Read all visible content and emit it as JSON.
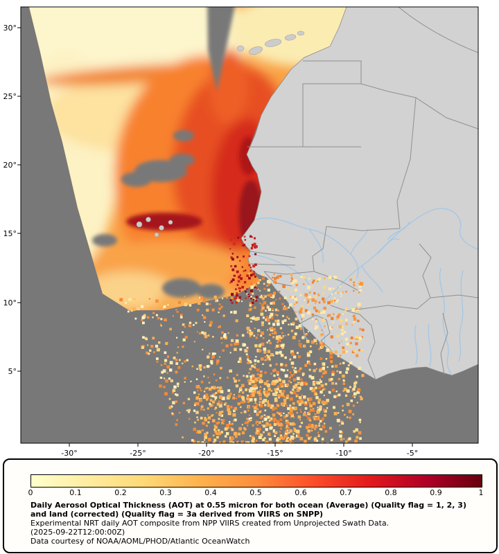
{
  "map": {
    "y_tick_labels": [
      "30°",
      "25°",
      "20°",
      "15°",
      "10°",
      "5°"
    ],
    "x_tick_labels": [
      "-30°",
      "-25°",
      "-20°",
      "-15°",
      "-10°",
      "-5°"
    ]
  },
  "colorbar": {
    "tick_labels": [
      "0",
      "0.1",
      "0.2",
      "0.3",
      "0.4",
      "0.5",
      "0.6",
      "0.7",
      "0.8",
      "0.9",
      "1"
    ],
    "gradient_colors": [
      "#ffffcc",
      "#ffeda0",
      "#fed976",
      "#feb24c",
      "#fd8d3c",
      "#fc4e2a",
      "#e31a1c",
      "#b10026",
      "#67000d"
    ]
  },
  "caption": {
    "title": "Daily Aerosol Optical Thickness (AOT) at 0.55 micron for both ocean (Average) (Quality flag = 1, 2, 3) and land (corrected) (Quality flag = 3a derived from VIIRS on SNPP)",
    "line2": "Experimental NRT daily AOT composite from NPP VIIRS created from Unprojected Swath Data.",
    "line3": "(2025-09-22T12:00:00Z)",
    "line4": "Data courtesy of NOAA/AOML/PHOD/Atlantic OceanWatch"
  },
  "colors": {
    "ocean_nodata": "#787878",
    "land": "#d2d2d2",
    "river": "#9fc6e8",
    "border": "#8f8f8f",
    "island": "#cccccc"
  }
}
